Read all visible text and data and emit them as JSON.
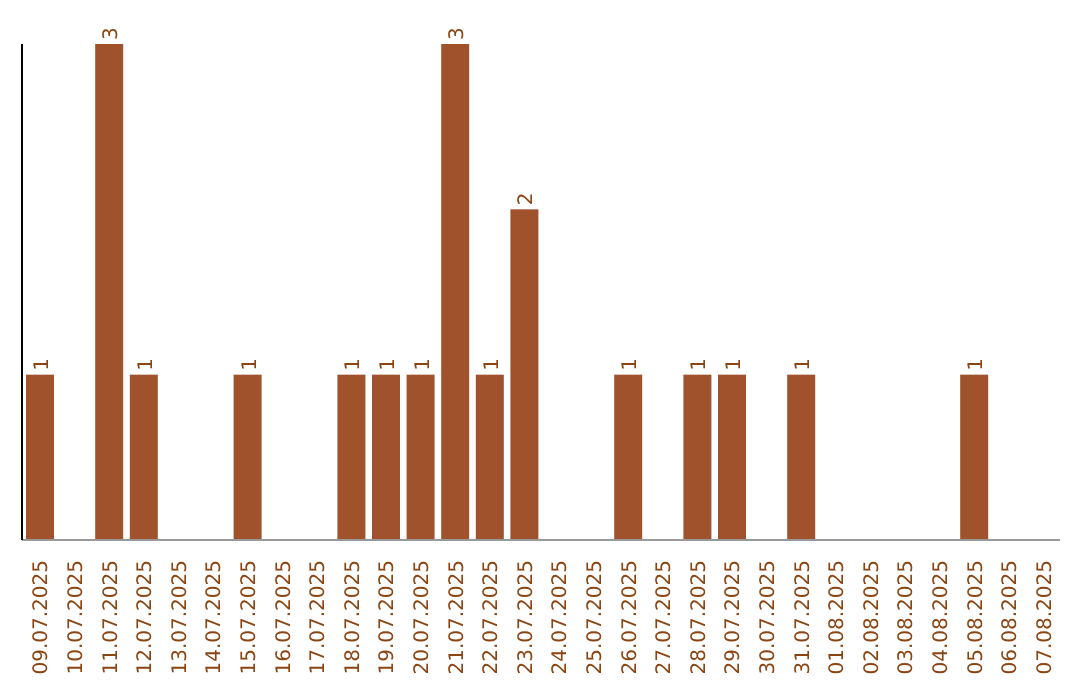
{
  "chart_data": {
    "type": "bar",
    "categories": [
      "09.07.2025",
      "10.07.2025",
      "11.07.2025",
      "12.07.2025",
      "13.07.2025",
      "14.07.2025",
      "15.07.2025",
      "16.07.2025",
      "17.07.2025",
      "18.07.2025",
      "19.07.2025",
      "20.07.2025",
      "21.07.2025",
      "22.07.2025",
      "23.07.2025",
      "24.07.2025",
      "25.07.2025",
      "26.07.2025",
      "27.07.2025",
      "28.07.2025",
      "29.07.2025",
      "30.07.2025",
      "31.07.2025",
      "01.08.2025",
      "02.08.2025",
      "03.08.2025",
      "04.08.2025",
      "05.08.2025",
      "06.08.2025",
      "07.08.2025"
    ],
    "values": [
      1,
      0,
      3,
      1,
      0,
      0,
      1,
      0,
      0,
      1,
      1,
      1,
      3,
      1,
      2,
      0,
      0,
      1,
      0,
      1,
      1,
      0,
      1,
      0,
      0,
      0,
      0,
      1,
      0,
      0
    ],
    "value_labels": [
      "1",
      null,
      "3",
      "1",
      null,
      null,
      "1",
      null,
      null,
      "1",
      "1",
      "1",
      "3",
      "1",
      "2",
      null,
      null,
      "1",
      null,
      "1",
      "1",
      null,
      "1",
      null,
      null,
      null,
      null,
      "1",
      null,
      null
    ],
    "color": "#a0522d",
    "ylim": [
      0,
      3
    ],
    "tick_labels": "x",
    "grid": false,
    "legend": false
  }
}
